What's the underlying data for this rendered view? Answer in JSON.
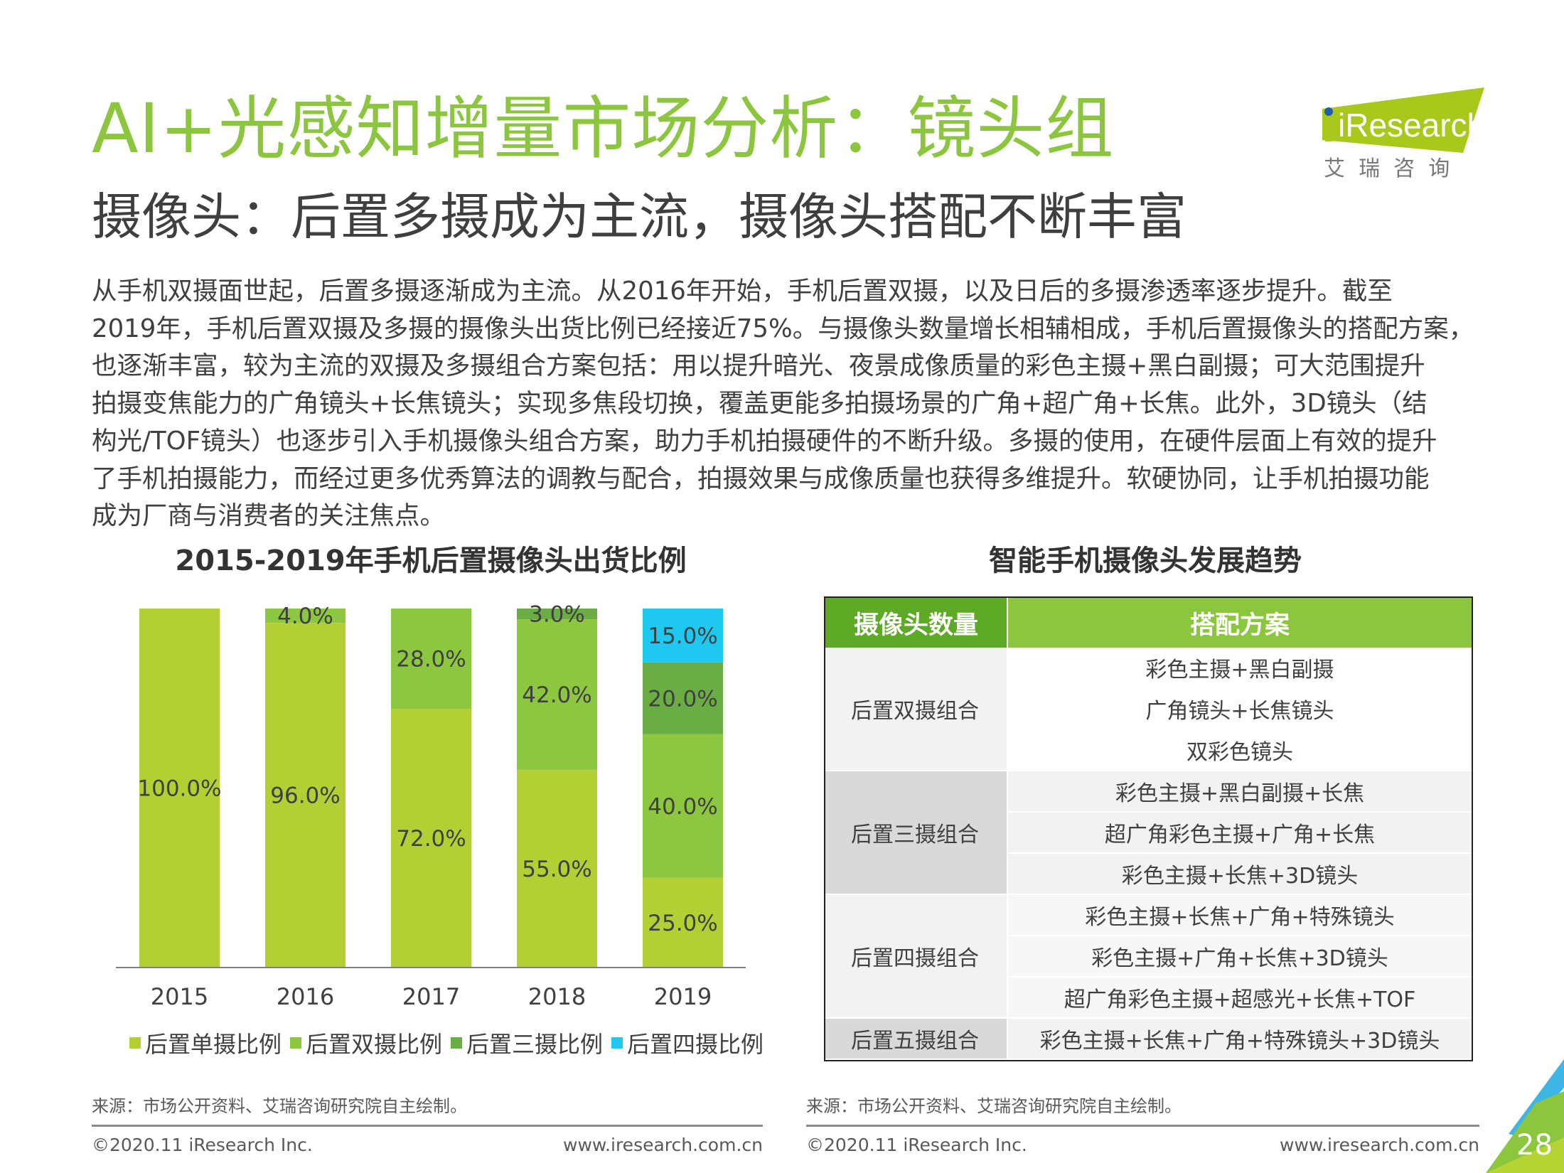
{
  "header": {
    "title": "AI+光感知增量市场分析：镜头组",
    "subtitle": "摄像头：后置多摄成为主流，摄像头搭配不断丰富",
    "logo": {
      "wordmark": "iResearch",
      "cn_name": "艾  瑞  咨  询",
      "color": "#a8c81c",
      "dot_color": "#1f5fa8"
    }
  },
  "body_lines": [
    "从手机双摄面世起，后置多摄逐渐成为主流。从2016年开始，手机后置双摄，以及日后的多摄渗透率逐步提升。截至",
    "2019年，手机后置双摄及多摄的摄像头出货比例已经接近75%。与摄像头数量增长相辅相成，手机后置摄像头的搭配方案，",
    "也逐渐丰富，较为主流的双摄及多摄组合方案包括：用以提升暗光、夜景成像质量的彩色主摄+黑白副摄；可大范围提升",
    "拍摄变焦能力的广角镜头+长焦镜头；实现多焦段切换，覆盖更能多拍摄场景的广角+超广角+长焦。此外，3D镜头（结",
    "构光/TOF镜头）也逐步引入手机摄像头组合方案，助力手机拍摄硬件的不断升级。多摄的使用，在硬件层面上有效的提升",
    "了手机拍摄能力，而经过更多优秀算法的调教与配合，拍摄效果与成像质量也获得多维提升。软硬协同，让手机拍摄功能",
    "成为厂商与消费者的关注焦点。"
  ],
  "chart_data": {
    "type": "bar",
    "stacked": true,
    "title": "2015-2019年手机后置摄像头出货比例",
    "categories": [
      "2015",
      "2016",
      "2017",
      "2018",
      "2019"
    ],
    "ylim": [
      0,
      100
    ],
    "grid": false,
    "legend_position": "bottom",
    "series": [
      {
        "name": "后置单摄比例",
        "color": "#b2cf33",
        "values": [
          100.0,
          96.0,
          72.0,
          55.0,
          25.0
        ]
      },
      {
        "name": "后置双摄比例",
        "color": "#8dc63f",
        "values": [
          0,
          4.0,
          28.0,
          42.0,
          40.0
        ]
      },
      {
        "name": "后置三摄比例",
        "color": "#6aad45",
        "values": [
          0,
          0,
          0,
          3.0,
          20.0
        ]
      },
      {
        "name": "后置四摄比例",
        "color": "#1ec8f0",
        "values": [
          0,
          0,
          0,
          0,
          15.0
        ]
      }
    ]
  },
  "table": {
    "title": "智能手机摄像头发展趋势",
    "headers": [
      "摄像头数量",
      "搭配方案"
    ],
    "groups": [
      {
        "label": "后置双摄组合",
        "options": [
          "彩色主摄+黑白副摄",
          "广角镜头+长焦镜头",
          "双彩色镜头"
        ]
      },
      {
        "label": "后置三摄组合",
        "options": [
          "彩色主摄+黑白副摄+长焦",
          "超广角彩色主摄+广角+长焦",
          "彩色主摄+长焦+3D镜头"
        ]
      },
      {
        "label": "后置四摄组合",
        "options": [
          "彩色主摄+长焦+广角+特殊镜头",
          "彩色主摄+广角+长焦+3D镜头",
          "超广角彩色主摄+超感光+长焦+TOF"
        ]
      },
      {
        "label": "后置五摄组合",
        "options": [
          "彩色主摄+长焦+广角+特殊镜头+3D镜头"
        ]
      }
    ]
  },
  "footer": {
    "source_left": "来源：市场公开资料、艾瑞咨询研究院自主绘制。",
    "source_right": "来源：市场公开资料、艾瑞咨询研究院自主绘制。",
    "copyright_left": "©2020.11 iResearch Inc.",
    "url_left": "www.iresearch.com.cn",
    "copyright_right": "©2020.11 iResearch Inc.",
    "url_right": "www.iresearch.com.cn",
    "page_number": "28"
  }
}
